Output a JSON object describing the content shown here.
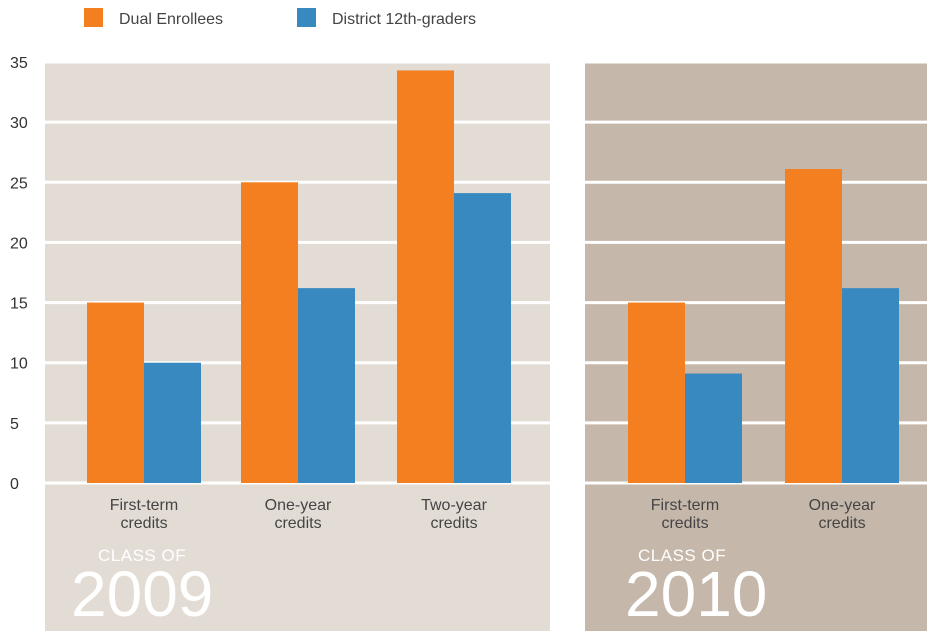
{
  "legend": [
    {
      "label": "Dual Enrollees",
      "color": "#f47f20"
    },
    {
      "label": "District 12th-graders",
      "color": "#3789bf"
    }
  ],
  "colors": {
    "panel_2009_bg": "#e3dcd5",
    "panel_2010_bg": "#c5b8ab",
    "gridline": "#ffffff"
  },
  "chart_data": [
    {
      "type": "bar",
      "panel_label": "CLASS OF",
      "panel_year": "2009",
      "categories": [
        "First-term\ncredits",
        "One-year\ncredits",
        "Two-year\ncredits"
      ],
      "series": [
        {
          "name": "Dual Enrollees",
          "values": [
            15,
            25,
            34.3
          ]
        },
        {
          "name": "District 12th-graders",
          "values": [
            10,
            16.2,
            24.1
          ]
        }
      ],
      "ylim": [
        0,
        35
      ],
      "yticks": [
        0,
        5,
        10,
        15,
        20,
        25,
        30,
        35
      ],
      "grid": true,
      "legend_position": "top-left"
    },
    {
      "type": "bar",
      "panel_label": "CLASS OF",
      "panel_year": "2010",
      "categories": [
        "First-term\ncredits",
        "One-year\ncredits"
      ],
      "series": [
        {
          "name": "Dual Enrollees",
          "values": [
            15,
            26.1
          ]
        },
        {
          "name": "District 12th-graders",
          "values": [
            9.1,
            16.2
          ]
        }
      ],
      "ylim": [
        0,
        35
      ],
      "grid": true
    }
  ]
}
